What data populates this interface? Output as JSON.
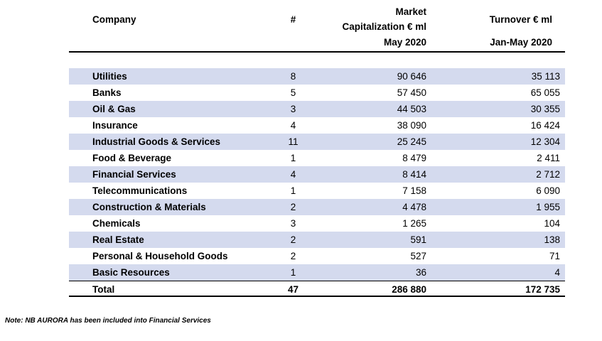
{
  "header": {
    "company": "Company",
    "count": "#",
    "market_line1": "Market",
    "market_line2": "Capitalization € ml",
    "market_line3": "May 2020",
    "turnover_line1": "Turnover € ml",
    "turnover_line2": "Jan-May 2020"
  },
  "rows": [
    {
      "name": "Utilities",
      "count": "8",
      "market_cap": "90 646",
      "turnover": "35 113"
    },
    {
      "name": "Banks",
      "count": "5",
      "market_cap": "57 450",
      "turnover": "65 055"
    },
    {
      "name": "Oil & Gas",
      "count": "3",
      "market_cap": "44 503",
      "turnover": "30 355"
    },
    {
      "name": "Insurance",
      "count": "4",
      "market_cap": "38 090",
      "turnover": "16 424"
    },
    {
      "name": "Industrial Goods & Services",
      "count": "11",
      "market_cap": "25 245",
      "turnover": "12 304"
    },
    {
      "name": "Food & Beverage",
      "count": "1",
      "market_cap": "8 479",
      "turnover": "2 411"
    },
    {
      "name": "Financial Services",
      "count": "4",
      "market_cap": "8 414",
      "turnover": "2 712"
    },
    {
      "name": "Telecommunications",
      "count": "1",
      "market_cap": "7 158",
      "turnover": "6 090"
    },
    {
      "name": "Construction & Materials",
      "count": "2",
      "market_cap": "4 478",
      "turnover": "1 955"
    },
    {
      "name": "Chemicals",
      "count": "3",
      "market_cap": "1 265",
      "turnover": "104"
    },
    {
      "name": "Real Estate",
      "count": "2",
      "market_cap": "591",
      "turnover": "138"
    },
    {
      "name": "Personal & Household Goods",
      "count": "2",
      "market_cap": "527",
      "turnover": "71"
    },
    {
      "name": "Basic Resources",
      "count": "1",
      "market_cap": "36",
      "turnover": "4"
    }
  ],
  "total": {
    "name": "Total",
    "count": "47",
    "market_cap": "286 880",
    "turnover": "172 735"
  },
  "note": "Note: NB AURORA has been included into Financial Services",
  "colors": {
    "row_shade": "#d4daee",
    "rule_color": "#000000"
  },
  "chart_data": {
    "type": "table",
    "title": "",
    "columns": [
      "Company",
      "#",
      "Market Capitalization € ml May 2020",
      "Turnover € ml Jan-May 2020"
    ],
    "rows": [
      [
        "Utilities",
        8,
        90646,
        35113
      ],
      [
        "Banks",
        5,
        57450,
        65055
      ],
      [
        "Oil & Gas",
        3,
        44503,
        30355
      ],
      [
        "Insurance",
        4,
        38090,
        16424
      ],
      [
        "Industrial Goods & Services",
        11,
        25245,
        12304
      ],
      [
        "Food & Beverage",
        1,
        8479,
        2411
      ],
      [
        "Financial Services",
        4,
        8414,
        2712
      ],
      [
        "Telecommunications",
        1,
        7158,
        6090
      ],
      [
        "Construction & Materials",
        2,
        4478,
        1955
      ],
      [
        "Chemicals",
        3,
        1265,
        104
      ],
      [
        "Real Estate",
        2,
        591,
        138
      ],
      [
        "Personal & Household Goods",
        2,
        527,
        71
      ],
      [
        "Basic Resources",
        1,
        36,
        4
      ]
    ],
    "total_row": [
      "Total",
      47,
      286880,
      172735
    ],
    "note": "Note: NB AURORA has been included into Financial Services"
  }
}
